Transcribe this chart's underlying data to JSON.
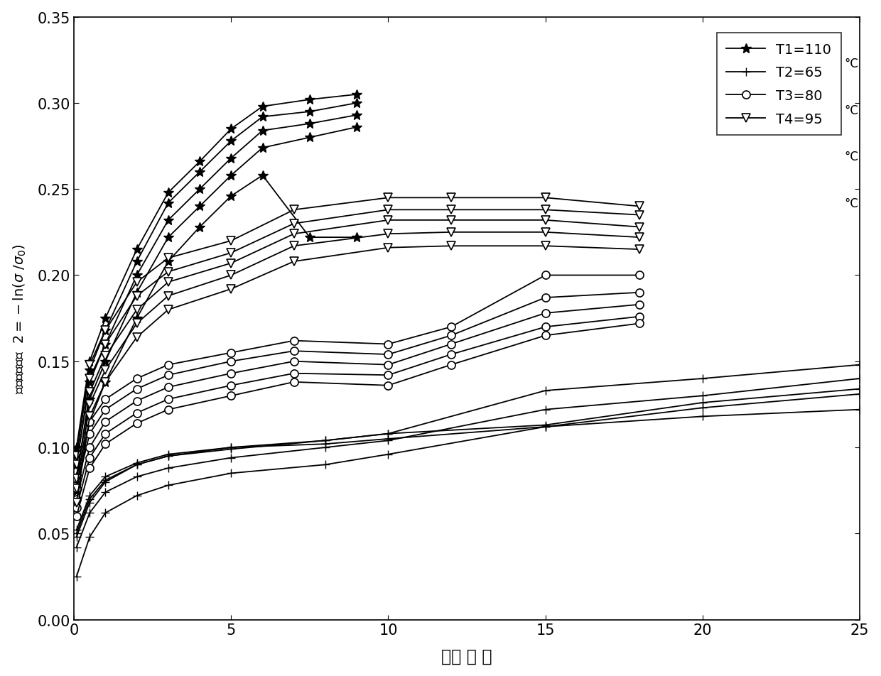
{
  "title": "",
  "xlabel": "检测 时 刻",
  "xlim": [
    0,
    25
  ],
  "ylim": [
    0,
    0.35
  ],
  "xticks": [
    0,
    5,
    10,
    15,
    20,
    25
  ],
  "yticks": [
    0,
    0.05,
    0.1,
    0.15,
    0.2,
    0.25,
    0.3,
    0.35
  ],
  "background_color": "#ffffff",
  "line_color": "#000000",
  "T1_x_data": [
    [
      0.08,
      0.5,
      1.0,
      2.0,
      3.0,
      4.0,
      5.0,
      6.0,
      7.5,
      9.0
    ],
    [
      0.08,
      0.5,
      1.0,
      2.0,
      3.0,
      4.0,
      5.0,
      6.0,
      7.5,
      9.0
    ],
    [
      0.08,
      0.5,
      1.0,
      2.0,
      3.0,
      4.0,
      5.0,
      6.0,
      7.5,
      9.0
    ],
    [
      0.08,
      0.5,
      1.0,
      2.0,
      3.0,
      4.0,
      5.0,
      6.0,
      7.5,
      9.0
    ],
    [
      0.08,
      0.5,
      1.0,
      2.0,
      3.0,
      4.0,
      5.0,
      6.0,
      7.5,
      9.0
    ]
  ],
  "T1_y_data": [
    [
      0.1,
      0.15,
      0.175,
      0.215,
      0.248,
      0.266,
      0.285,
      0.298,
      0.302,
      0.305
    ],
    [
      0.096,
      0.145,
      0.168,
      0.208,
      0.242,
      0.26,
      0.278,
      0.292,
      0.295,
      0.3
    ],
    [
      0.09,
      0.138,
      0.16,
      0.2,
      0.232,
      0.25,
      0.268,
      0.284,
      0.288,
      0.293
    ],
    [
      0.083,
      0.128,
      0.15,
      0.19,
      0.222,
      0.24,
      0.258,
      0.274,
      0.28,
      0.286
    ],
    [
      0.075,
      0.115,
      0.138,
      0.175,
      0.208,
      0.228,
      0.246,
      0.258,
      0.222,
      0.222
    ]
  ],
  "T2_x_data": [
    [
      0.08,
      0.5,
      1.0,
      2.0,
      3.0,
      5.0,
      8.0,
      10.0,
      15.0,
      20.0,
      25.0
    ],
    [
      0.08,
      0.5,
      1.0,
      2.0,
      3.0,
      5.0,
      8.0,
      10.0,
      15.0,
      20.0,
      25.0
    ],
    [
      0.08,
      0.5,
      1.0,
      2.0,
      3.0,
      5.0,
      8.0,
      10.0,
      15.0,
      20.0,
      25.0
    ],
    [
      0.08,
      0.5,
      1.0,
      2.0,
      3.0,
      5.0,
      8.0,
      10.0,
      15.0,
      20.0,
      25.0
    ],
    [
      0.08,
      0.5,
      1.0,
      2.0,
      3.0,
      5.0,
      8.0,
      10.0,
      15.0,
      20.0,
      25.0
    ]
  ],
  "T2_y_data": [
    [
      0.048,
      0.068,
      0.08,
      0.09,
      0.095,
      0.1,
      0.104,
      0.108,
      0.133,
      0.14,
      0.148
    ],
    [
      0.042,
      0.062,
      0.074,
      0.083,
      0.088,
      0.094,
      0.1,
      0.104,
      0.122,
      0.13,
      0.14
    ],
    [
      0.05,
      0.07,
      0.081,
      0.09,
      0.095,
      0.099,
      0.104,
      0.108,
      0.113,
      0.126,
      0.134
    ],
    [
      0.052,
      0.072,
      0.083,
      0.091,
      0.096,
      0.1,
      0.102,
      0.105,
      0.112,
      0.123,
      0.131
    ],
    [
      0.025,
      0.048,
      0.062,
      0.072,
      0.078,
      0.085,
      0.09,
      0.096,
      0.112,
      0.118,
      0.122
    ]
  ],
  "T3_x_data": [
    [
      0.08,
      0.5,
      1.0,
      2.0,
      3.0,
      5.0,
      7.0,
      10.0,
      12.0,
      15.0,
      18.0
    ],
    [
      0.08,
      0.5,
      1.0,
      2.0,
      3.0,
      5.0,
      7.0,
      10.0,
      12.0,
      15.0,
      18.0
    ],
    [
      0.08,
      0.5,
      1.0,
      2.0,
      3.0,
      5.0,
      7.0,
      10.0,
      12.0,
      15.0,
      18.0
    ],
    [
      0.08,
      0.5,
      1.0,
      2.0,
      3.0,
      5.0,
      7.0,
      10.0,
      12.0,
      15.0,
      18.0
    ],
    [
      0.08,
      0.5,
      1.0,
      2.0,
      3.0,
      5.0,
      7.0,
      10.0,
      12.0,
      15.0,
      18.0
    ]
  ],
  "T3_y_data": [
    [
      0.082,
      0.115,
      0.128,
      0.14,
      0.148,
      0.155,
      0.162,
      0.16,
      0.17,
      0.2,
      0.2
    ],
    [
      0.076,
      0.108,
      0.122,
      0.134,
      0.142,
      0.15,
      0.156,
      0.154,
      0.165,
      0.187,
      0.19
    ],
    [
      0.07,
      0.1,
      0.115,
      0.127,
      0.135,
      0.143,
      0.15,
      0.148,
      0.16,
      0.178,
      0.183
    ],
    [
      0.065,
      0.094,
      0.108,
      0.12,
      0.128,
      0.136,
      0.143,
      0.142,
      0.154,
      0.17,
      0.176
    ],
    [
      0.06,
      0.088,
      0.102,
      0.114,
      0.122,
      0.13,
      0.138,
      0.136,
      0.148,
      0.165,
      0.172
    ]
  ],
  "T4_x_data": [
    [
      0.08,
      0.5,
      1.0,
      2.0,
      3.0,
      5.0,
      7.0,
      10.0,
      12.0,
      15.0,
      18.0
    ],
    [
      0.08,
      0.5,
      1.0,
      2.0,
      3.0,
      5.0,
      7.0,
      10.0,
      12.0,
      15.0,
      18.0
    ],
    [
      0.08,
      0.5,
      1.0,
      2.0,
      3.0,
      5.0,
      7.0,
      10.0,
      12.0,
      15.0,
      18.0
    ],
    [
      0.08,
      0.5,
      1.0,
      2.0,
      3.0,
      5.0,
      7.0,
      10.0,
      12.0,
      15.0,
      18.0
    ],
    [
      0.08,
      0.5,
      1.0,
      2.0,
      3.0,
      5.0,
      7.0,
      10.0,
      12.0,
      15.0,
      18.0
    ]
  ],
  "T4_y_data": [
    [
      0.095,
      0.148,
      0.168,
      0.196,
      0.21,
      0.22,
      0.238,
      0.245,
      0.245,
      0.245,
      0.24
    ],
    [
      0.09,
      0.14,
      0.16,
      0.188,
      0.202,
      0.213,
      0.23,
      0.238,
      0.238,
      0.238,
      0.235
    ],
    [
      0.082,
      0.132,
      0.153,
      0.18,
      0.196,
      0.207,
      0.224,
      0.232,
      0.232,
      0.232,
      0.228
    ],
    [
      0.076,
      0.125,
      0.145,
      0.172,
      0.188,
      0.2,
      0.217,
      0.224,
      0.225,
      0.225,
      0.222
    ],
    [
      0.068,
      0.118,
      0.138,
      0.164,
      0.18,
      0.192,
      0.208,
      0.216,
      0.217,
      0.217,
      0.215
    ]
  ]
}
